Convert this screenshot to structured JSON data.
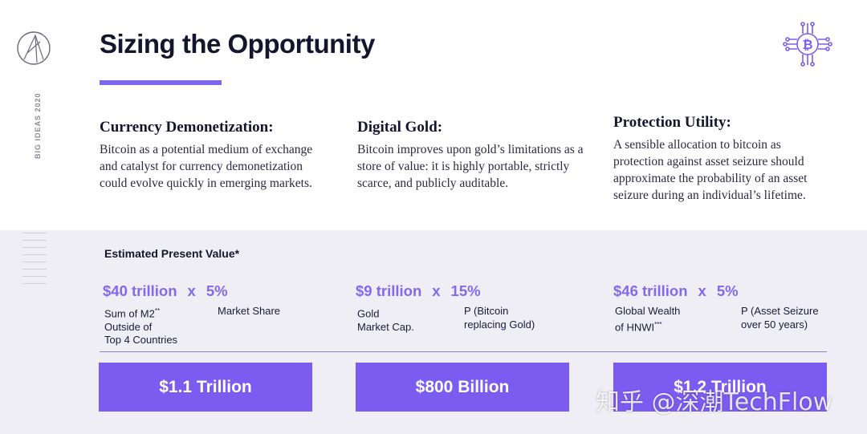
{
  "sidebar": {
    "label": "BIG IDEAS 2020"
  },
  "header": {
    "title": "Sizing the Opportunity"
  },
  "columns": [
    {
      "heading": "Currency Demonetization:",
      "body": "Bitcoin as a potential medium of exchange and catalyst for currency demonetization could evolve quickly in emerging markets."
    },
    {
      "heading": "Digital Gold:",
      "body": "Bitcoin improves upon gold’s limitations as a store of value: it is highly portable, strictly scarce, and publicly auditable."
    },
    {
      "heading": "Protection Utility:",
      "body": "A sensible allocation to bitcoin as protection against asset seizure should approximate the probability of an asset seizure during an individual’s lifetime."
    }
  ],
  "estimate_label": "Estimated Present Value*",
  "metrics": [
    {
      "value": "$40 trillion",
      "op": "x",
      "pct": "5%",
      "label_a": "Sum of M2",
      "label_a_sup": "**",
      "label_a_rest": "Outside of\nTop 4 Countries",
      "label_b": "Market Share",
      "result": "$1.1 Trillion"
    },
    {
      "value": "$9 trillion",
      "op": "x",
      "pct": "15%",
      "label_a": "Gold",
      "label_a_sup": "",
      "label_a_rest": "Market Cap.",
      "label_b": "P (Bitcoin\nreplacing Gold)",
      "result": "$800 Billion"
    },
    {
      "value": "$46 trillion",
      "op": "x",
      "pct": "5%",
      "label_a": "Global Wealth",
      "label_a_sup": "",
      "label_a_rest": "of HNWI",
      "label_a_rest_sup": "***",
      "label_b": "P (Asset Seizure\nover 50 years)",
      "result": "$1.2 Trillion"
    }
  ],
  "watermark": "知乎 @深潮TechFlow",
  "colors": {
    "accent": "#7a5cf0",
    "metric": "#8468f0",
    "panel": "#eeeef4"
  }
}
